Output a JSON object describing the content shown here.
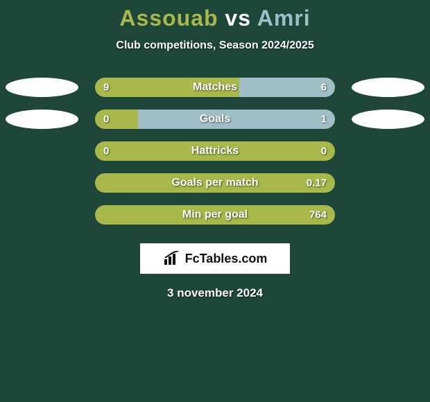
{
  "title": {
    "player1": "Assouab",
    "vs": "vs",
    "player2": "Amri"
  },
  "subtitle": "Club competitions, Season 2024/2025",
  "colors": {
    "player1": "#a8b84a",
    "player2": "#9fbec5",
    "background": "#1e4739",
    "ellipse_left": "#ffffff",
    "ellipse_right": "#ffffff",
    "text": "#ffffff"
  },
  "stats": [
    {
      "label": "Matches",
      "left_value": "9",
      "right_value": "6",
      "left_pct": 60,
      "left_color": "#a8b84a",
      "right_color": "#9fbec5",
      "show_left_ellipse": true,
      "show_right_ellipse": true
    },
    {
      "label": "Goals",
      "left_value": "0",
      "right_value": "1",
      "left_pct": 18,
      "left_color": "#a8b84a",
      "right_color": "#9fbec5",
      "show_left_ellipse": true,
      "show_right_ellipse": true
    },
    {
      "label": "Hattricks",
      "left_value": "0",
      "right_value": "0",
      "left_pct": 100,
      "left_color": "#a8b84a",
      "right_color": "#9fbec5",
      "show_left_ellipse": false,
      "show_right_ellipse": false
    },
    {
      "label": "Goals per match",
      "left_value": "",
      "right_value": "0.17",
      "left_pct": 100,
      "left_color": "#a8b84a",
      "right_color": "#9fbec5",
      "show_left_ellipse": false,
      "show_right_ellipse": false
    },
    {
      "label": "Min per goal",
      "left_value": "",
      "right_value": "764",
      "left_pct": 100,
      "left_color": "#a8b84a",
      "right_color": "#9fbec5",
      "show_left_ellipse": false,
      "show_right_ellipse": false
    }
  ],
  "logo": {
    "text": "FcTables.com"
  },
  "date": "3 november 2024"
}
